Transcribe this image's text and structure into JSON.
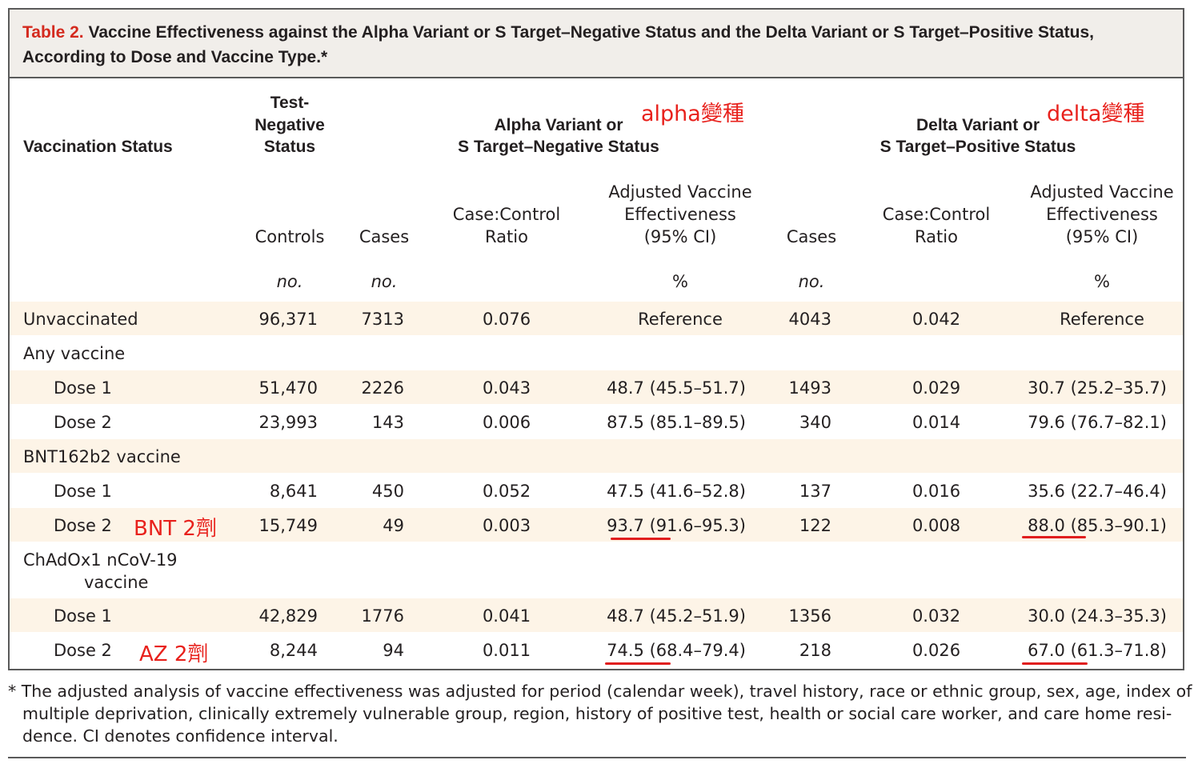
{
  "caption": {
    "label": "Table 2.",
    "title_line1": " Vaccine Effectiveness against the Alpha Variant or S Target–Negative Status and the Delta Variant or S Target–Positive Status,",
    "title_line2": "According to Dose and Vaccine Type.*"
  },
  "header": {
    "vaccination_status": "Vaccination Status",
    "test_negative_l1": "Test-",
    "test_negative_l2": "Negative",
    "test_negative_l3": "Status",
    "alpha_l1": "Alpha Variant or",
    "alpha_l2": "S Target–Negative Status",
    "delta_l1": "Delta Variant or",
    "delta_l2": "S Target–Positive Status",
    "controls": "Controls",
    "cases": "Cases",
    "ratio_l1": "Case:Control",
    "ratio_l2": "Ratio",
    "ave_l1": "Adjusted Vaccine",
    "ave_l2": "Effectiveness",
    "ave_l3": "(95% CI)",
    "unit_no": "no.",
    "unit_pct": "%"
  },
  "rows": [
    {
      "label": "Unvaccinated",
      "controls": "96,371",
      "alpha_cases": "7313",
      "alpha_ratio": "0.076",
      "alpha_ve": "Reference",
      "delta_cases": "4043",
      "delta_ratio": "0.042",
      "delta_ve": "Reference"
    },
    {
      "label": "Any vaccine"
    },
    {
      "label": "Dose 1",
      "controls": "51,470",
      "alpha_cases": "2226",
      "alpha_ratio": "0.043",
      "alpha_ve": "48.7 (45.5–51.7)",
      "delta_cases": "1493",
      "delta_ratio": "0.029",
      "delta_ve": "30.7 (25.2–35.7)"
    },
    {
      "label": "Dose 2",
      "controls": "23,993",
      "alpha_cases": "143",
      "alpha_ratio": "0.006",
      "alpha_ve": "87.5 (85.1–89.5)",
      "delta_cases": "340",
      "delta_ratio": "0.014",
      "delta_ve": "79.6 (76.7–82.1)"
    },
    {
      "label": "BNT162b2 vaccine"
    },
    {
      "label": "Dose 1",
      "controls": "8,641",
      "alpha_cases": "450",
      "alpha_ratio": "0.052",
      "alpha_ve": "47.5 (41.6–52.8)",
      "delta_cases": "137",
      "delta_ratio": "0.016",
      "delta_ve": "35.6 (22.7–46.4)"
    },
    {
      "label": "Dose 2",
      "controls": "15,749",
      "alpha_cases": "49",
      "alpha_ratio": "0.003",
      "alpha_ve": "93.7 (91.6–95.3)",
      "delta_cases": "122",
      "delta_ratio": "0.008",
      "delta_ve": "88.0 (85.3–90.1)"
    },
    {
      "label_l1": "ChAdOx1 nCoV-19",
      "label_l2": "vaccine"
    },
    {
      "label": "Dose 1",
      "controls": "42,829",
      "alpha_cases": "1776",
      "alpha_ratio": "0.041",
      "alpha_ve": "48.7 (45.2–51.9)",
      "delta_cases": "1356",
      "delta_ratio": "0.032",
      "delta_ve": "30.0 (24.3–35.3)"
    },
    {
      "label": "Dose 2",
      "controls": "8,244",
      "alpha_cases": "94",
      "alpha_ratio": "0.011",
      "alpha_ve": "74.5 (68.4–79.4)",
      "delta_cases": "218",
      "delta_ratio": "0.026",
      "delta_ve": "67.0 (61.3–71.8)"
    }
  ],
  "annotations": {
    "alpha": "alpha變種",
    "delta": "delta變種",
    "bnt": "BNT 2劑",
    "az": "AZ 2劑"
  },
  "colors": {
    "caption_label": "#d42a1e",
    "annotation": "#e8211c",
    "band": "#fdf4e7",
    "caption_bg": "#f1eeea"
  },
  "footnote": {
    "line1": "* The adjusted analysis of vaccine effectiveness was adjusted for period (calendar week), travel history, race or ethnic group, sex, age, index of",
    "line2": "multiple deprivation, clinically extremely vulnerable group, region, history of positive test, health or social care worker, and care home resi-",
    "line3": "dence. CI denotes confidence interval."
  }
}
